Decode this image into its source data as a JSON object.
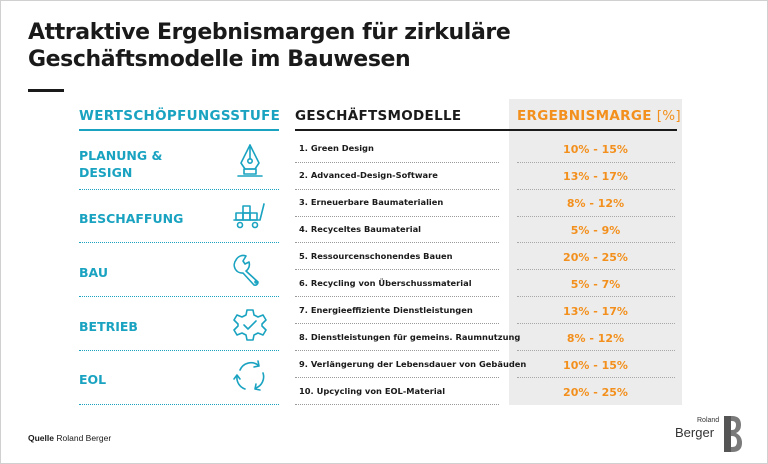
{
  "title": {
    "line1": "Attraktive Ergebnismargen für zirkuläre",
    "line2": "Geschäftsmodelle im Bauwesen"
  },
  "headers": {
    "stufe": "WERTSCHÖPFUNGSSTUFE",
    "modelle": "GESCHÄFTSMODELLE",
    "marge": "ERGEBNISMARGE",
    "marge_unit": "[%]"
  },
  "stages": [
    {
      "label": "PLANUNG &\nDESIGN",
      "icon": "pen-nib-icon"
    },
    {
      "label": "BESCHAFFUNG",
      "icon": "cart-boxes-icon"
    },
    {
      "label": "BAU",
      "icon": "wrench-icon"
    },
    {
      "label": "BETRIEB",
      "icon": "gear-icon"
    },
    {
      "label": "EOL",
      "icon": "recycle-arrows-icon"
    }
  ],
  "models": [
    {
      "label": "1. Green Design",
      "marge": "10% - 15%"
    },
    {
      "label": "2. Advanced-Design-Software",
      "marge": "13% - 17%"
    },
    {
      "label": "3. Erneuerbare Baumaterialien",
      "marge": "8% - 12%"
    },
    {
      "label": "4. Recyceltes Baumaterial",
      "marge": "5% - 9%"
    },
    {
      "label": "5. Ressourcenschonendes Bauen",
      "marge": "20% - 25%"
    },
    {
      "label": "6. Recycling von Überschussmaterial",
      "marge": "5% - 7%"
    },
    {
      "label": "7. Energieeffiziente Dienstleistungen",
      "marge": "13% - 17%"
    },
    {
      "label": "8. Dienstleistungen für gemeins. Raumnutzung",
      "marge": "8% - 12%"
    },
    {
      "label": "9. Verlängerung der Lebensdauer von Gebäuden",
      "marge": "10% - 15%"
    },
    {
      "label": "10. Upcycling von EOL-Material",
      "marge": "20% - 25%"
    }
  ],
  "source": {
    "label": "Quelle",
    "value": "Roland Berger"
  },
  "logo": {
    "line1": "Roland",
    "line2": "Berger"
  },
  "colors": {
    "teal": "#1aa3c1",
    "orange": "#f3901d",
    "dark": "#1a1a1a",
    "panel": "#ececec"
  }
}
